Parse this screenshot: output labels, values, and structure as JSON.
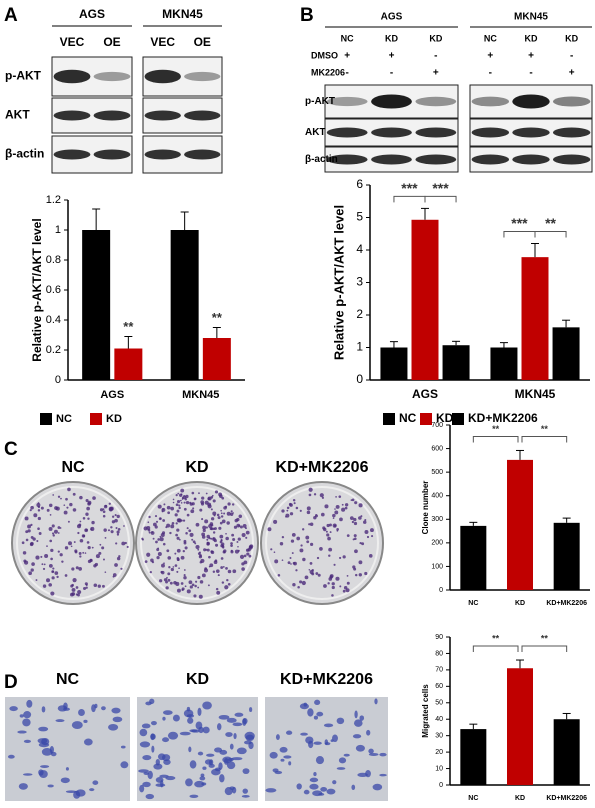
{
  "panel_labels": [
    "A",
    "B",
    "C",
    "D"
  ],
  "blot_a": {
    "groups": [
      "AGS",
      "MKN45"
    ],
    "lanes": [
      "VEC",
      "OE",
      "VEC",
      "OE"
    ],
    "rows": [
      "p-AKT",
      "AKT",
      "β-actin"
    ]
  },
  "blot_b": {
    "groups": [
      "AGS",
      "MKN45"
    ],
    "lanes": [
      "NC",
      "KD",
      "KD",
      "NC",
      "KD",
      "KD"
    ],
    "treatments": [
      {
        "name": "DMSO",
        "marks": [
          "+",
          "+",
          "-",
          "+",
          "+",
          "-"
        ]
      },
      {
        "name": "MK2206",
        "marks": [
          "-",
          "-",
          "+",
          "-",
          "-",
          "+"
        ]
      }
    ],
    "rows": [
      "p-AKT",
      "AKT",
      "β-actin"
    ]
  },
  "colony_images": [
    "NC",
    "KD",
    "KD+MK2206"
  ],
  "migration_images": [
    "NC",
    "KD",
    "KD+MK2206"
  ],
  "chart_data": [
    {
      "type": "bar",
      "ylabel": "Relative p-AKT/AKT  level",
      "categories": [
        "AGS",
        "MKN45"
      ],
      "series": [
        {
          "name": "NC",
          "color": "#000000",
          "values": [
            1,
            1
          ],
          "errors": [
            0.14,
            0.12
          ]
        },
        {
          "name": "KD",
          "color": "#c00000",
          "values": [
            0.21,
            0.28
          ],
          "errors": [
            0.08,
            0.07
          ]
        }
      ],
      "significance": [
        "**",
        "**"
      ],
      "ylim": [
        0,
        1.2
      ],
      "yticks": [
        0,
        0.2,
        0.4,
        0.6,
        0.8,
        1,
        1.2
      ],
      "legend": "bottom"
    },
    {
      "type": "bar",
      "ylabel": "Relative p-AKT/AKT  level",
      "categories": [
        "AGS",
        "MKN45"
      ],
      "series": [
        {
          "name": "NC",
          "color": "#000000",
          "values": [
            1,
            1
          ],
          "errors": [
            0.18,
            0.15
          ]
        },
        {
          "name": "KD",
          "color": "#c00000",
          "values": [
            4.93,
            3.78
          ],
          "errors": [
            0.35,
            0.42
          ]
        },
        {
          "name": "KD+MK2206",
          "color": "#000000",
          "values": [
            1.07,
            1.62
          ],
          "errors": [
            0.12,
            0.22
          ]
        }
      ],
      "significance": [
        [
          "***",
          "***"
        ],
        [
          "***",
          "**"
        ]
      ],
      "ylim": [
        0,
        6
      ],
      "yticks": [
        0,
        1,
        2,
        3,
        4,
        5,
        6
      ],
      "legend": "bottom"
    },
    {
      "type": "bar",
      "ylabel": "Clone number",
      "categories": [
        "NC",
        "KD",
        "KD+MK2206"
      ],
      "values": [
        272,
        552,
        285
      ],
      "errors": [
        15,
        40,
        20
      ],
      "colors": [
        "#000000",
        "#c00000",
        "#000000"
      ],
      "significance": [
        "**",
        "**"
      ],
      "ylim": [
        0,
        700
      ],
      "yticks": [
        0,
        100,
        200,
        300,
        400,
        500,
        600,
        700
      ]
    },
    {
      "type": "bar",
      "ylabel": "Migrated cells",
      "categories": [
        "NC",
        "KD",
        "KD+MK2206"
      ],
      "values": [
        34,
        71,
        40
      ],
      "errors": [
        3,
        5,
        3.5
      ],
      "colors": [
        "#000000",
        "#c00000",
        "#000000"
      ],
      "significance": [
        "**",
        "**"
      ],
      "ylim": [
        0,
        90
      ],
      "yticks": [
        0,
        10,
        20,
        30,
        40,
        50,
        60,
        70,
        80,
        90
      ]
    }
  ]
}
